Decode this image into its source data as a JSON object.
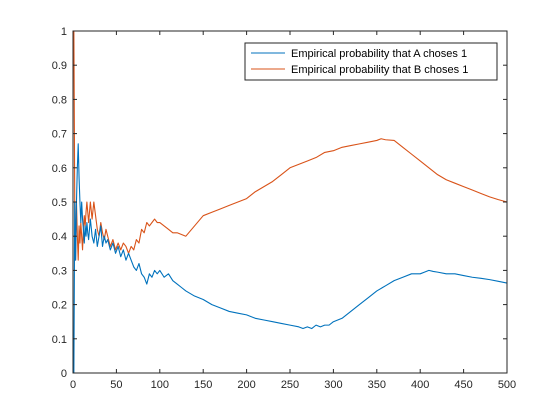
{
  "chart_data": {
    "type": "line",
    "title": "",
    "xlabel": "",
    "ylabel": "",
    "xlim": [
      0,
      500
    ],
    "ylim": [
      0,
      1
    ],
    "x_ticks": [
      "0",
      "50",
      "100",
      "150",
      "200",
      "250",
      "300",
      "350",
      "400",
      "450",
      "500"
    ],
    "y_ticks": [
      "0",
      "0.1",
      "0.2",
      "0.3",
      "0.4",
      "0.5",
      "0.6",
      "0.7",
      "0.8",
      "0.9",
      "1"
    ],
    "grid": false,
    "legend_position": "top-right",
    "series": [
      {
        "name": "Empirical probability that A choses 1",
        "color": "#0072BD",
        "x": [
          1,
          2,
          3,
          4,
          5,
          6,
          7,
          8,
          9,
          10,
          11,
          12,
          13,
          14,
          15,
          16,
          17,
          18,
          19,
          20,
          22,
          24,
          26,
          28,
          30,
          32,
          34,
          36,
          38,
          40,
          43,
          46,
          49,
          52,
          55,
          58,
          61,
          64,
          67,
          70,
          73,
          76,
          79,
          82,
          85,
          88,
          91,
          94,
          97,
          100,
          105,
          110,
          115,
          120,
          125,
          130,
          140,
          150,
          160,
          170,
          180,
          190,
          200,
          210,
          220,
          230,
          240,
          250,
          260,
          265,
          270,
          275,
          280,
          285,
          290,
          295,
          300,
          310,
          320,
          330,
          340,
          350,
          360,
          370,
          380,
          390,
          400,
          405,
          410,
          415,
          420,
          430,
          440,
          450,
          460,
          470,
          480,
          490,
          500
        ],
        "y": [
          0,
          0.5,
          0.33,
          0.5,
          0.6,
          0.67,
          0.57,
          0.5,
          0.44,
          0.5,
          0.45,
          0.42,
          0.38,
          0.43,
          0.4,
          0.44,
          0.41,
          0.39,
          0.42,
          0.45,
          0.4,
          0.38,
          0.42,
          0.37,
          0.4,
          0.43,
          0.37,
          0.4,
          0.38,
          0.39,
          0.36,
          0.38,
          0.35,
          0.37,
          0.34,
          0.36,
          0.33,
          0.35,
          0.33,
          0.31,
          0.3,
          0.32,
          0.29,
          0.28,
          0.26,
          0.29,
          0.28,
          0.3,
          0.29,
          0.3,
          0.28,
          0.29,
          0.27,
          0.26,
          0.25,
          0.24,
          0.225,
          0.215,
          0.2,
          0.19,
          0.18,
          0.175,
          0.17,
          0.16,
          0.155,
          0.15,
          0.145,
          0.14,
          0.135,
          0.13,
          0.135,
          0.13,
          0.14,
          0.135,
          0.14,
          0.14,
          0.15,
          0.16,
          0.18,
          0.2,
          0.22,
          0.24,
          0.255,
          0.27,
          0.28,
          0.29,
          0.29,
          0.295,
          0.3,
          0.297,
          0.295,
          0.29,
          0.29,
          0.285,
          0.28,
          0.277,
          0.273,
          0.268,
          0.263
        ]
      },
      {
        "name": "Empirical probability that B choses 1",
        "color": "#D95319",
        "x": [
          1,
          2,
          3,
          4,
          5,
          6,
          7,
          8,
          9,
          10,
          11,
          12,
          13,
          14,
          15,
          16,
          17,
          18,
          19,
          20,
          22,
          24,
          26,
          28,
          30,
          32,
          34,
          36,
          38,
          40,
          43,
          46,
          49,
          52,
          55,
          58,
          61,
          64,
          67,
          70,
          73,
          76,
          79,
          82,
          85,
          88,
          91,
          94,
          97,
          100,
          105,
          110,
          115,
          120,
          125,
          130,
          140,
          150,
          160,
          170,
          180,
          190,
          200,
          210,
          220,
          230,
          240,
          250,
          260,
          270,
          280,
          290,
          300,
          310,
          320,
          330,
          340,
          350,
          355,
          360,
          370,
          380,
          390,
          400,
          410,
          420,
          430,
          440,
          450,
          460,
          470,
          480,
          490,
          500
        ],
        "y": [
          1,
          0.5,
          0.33,
          0.5,
          0.4,
          0.33,
          0.43,
          0.38,
          0.44,
          0.4,
          0.36,
          0.42,
          0.46,
          0.43,
          0.47,
          0.5,
          0.47,
          0.44,
          0.47,
          0.5,
          0.45,
          0.5,
          0.46,
          0.42,
          0.4,
          0.44,
          0.41,
          0.39,
          0.42,
          0.4,
          0.37,
          0.39,
          0.36,
          0.38,
          0.36,
          0.38,
          0.37,
          0.35,
          0.37,
          0.36,
          0.39,
          0.38,
          0.42,
          0.41,
          0.44,
          0.43,
          0.44,
          0.45,
          0.44,
          0.44,
          0.43,
          0.42,
          0.41,
          0.41,
          0.405,
          0.4,
          0.43,
          0.46,
          0.47,
          0.48,
          0.49,
          0.5,
          0.51,
          0.53,
          0.545,
          0.56,
          0.58,
          0.6,
          0.61,
          0.62,
          0.63,
          0.645,
          0.65,
          0.66,
          0.665,
          0.67,
          0.675,
          0.68,
          0.685,
          0.682,
          0.68,
          0.66,
          0.64,
          0.62,
          0.6,
          0.58,
          0.565,
          0.555,
          0.545,
          0.535,
          0.525,
          0.515,
          0.507,
          0.5
        ]
      }
    ]
  }
}
